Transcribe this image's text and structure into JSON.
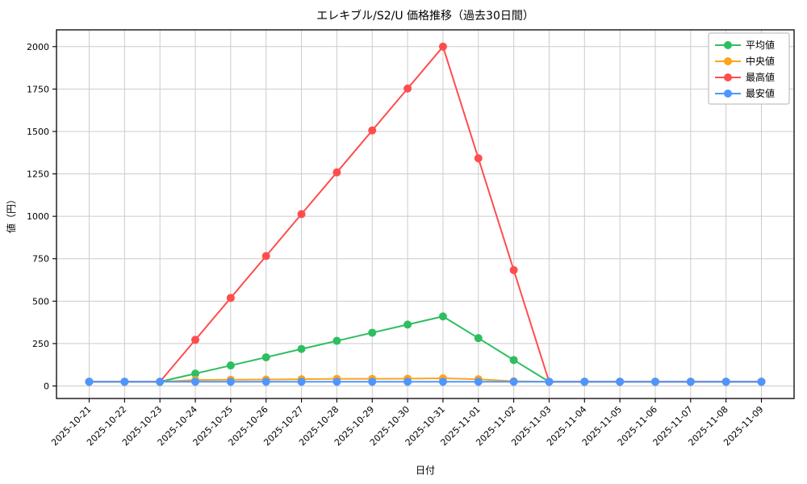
{
  "chart_data": {
    "type": "line",
    "title": "エレキブル/S2/U 価格推移（過去30日間）",
    "xlabel": "日付",
    "ylabel": "値（円）",
    "grid": true,
    "legend_position": "upper right",
    "ylim": [
      -74,
      2099
    ],
    "yticks": [
      0,
      250,
      500,
      750,
      1000,
      1250,
      1500,
      1750,
      2000
    ],
    "x": [
      "2025-10-21",
      "2025-10-22",
      "2025-10-23",
      "2025-10-24",
      "2025-10-25",
      "2025-10-26",
      "2025-10-27",
      "2025-10-28",
      "2025-10-29",
      "2025-10-30",
      "2025-10-31",
      "2025-11-01",
      "2025-11-02",
      "2025-11-03",
      "2025-11-04",
      "2025-11-05",
      "2025-11-06",
      "2025-11-07",
      "2025-11-08",
      "2025-11-09"
    ],
    "series": [
      {
        "key": "average",
        "name": "平均値",
        "color": "#2dbe60",
        "values": [
          25,
          25,
          25,
          73,
          121,
          169,
          218,
          266,
          314,
          362,
          410,
          282,
          153,
          25,
          25,
          25,
          25,
          25,
          25,
          25
        ]
      },
      {
        "key": "median",
        "name": "中央値",
        "color": "#ffa41b",
        "values": [
          25,
          25,
          25,
          35,
          37,
          38,
          40,
          42,
          42,
          43,
          45,
          40,
          28,
          25,
          25,
          25,
          25,
          25,
          25,
          25
        ]
      },
      {
        "key": "max",
        "name": "最高値",
        "color": "#ff4d4d",
        "values": [
          25,
          25,
          25,
          272,
          519,
          766,
          1013,
          1259,
          1506,
          1753,
          2000,
          1342,
          683,
          25,
          25,
          25,
          25,
          25,
          25,
          25
        ]
      },
      {
        "key": "min",
        "name": "最安値",
        "color": "#4d96ff",
        "values": [
          25,
          25,
          25,
          25,
          25,
          25,
          25,
          25,
          25,
          25,
          25,
          25,
          25,
          25,
          25,
          25,
          25,
          25,
          25,
          25
        ]
      }
    ]
  }
}
